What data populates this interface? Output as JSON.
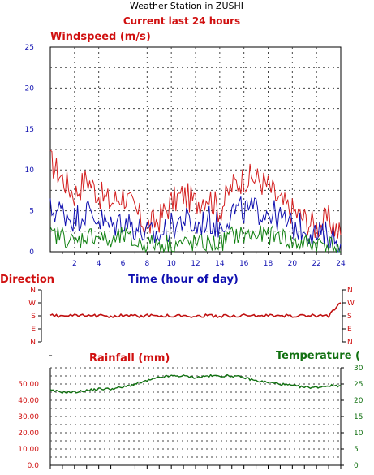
{
  "header": {
    "station": "Weather Station in ZUSHI",
    "period": "Current last 24 hours"
  },
  "colors": {
    "windspeed_max": "#d42020",
    "windspeed_avg": "#1010b0",
    "windspeed_min": "#108010",
    "direction": "#c01010",
    "temperature": "#107010",
    "grid": "#444444",
    "label_red": "#d01010",
    "label_blue": "#1010b0",
    "label_green": "#107010"
  },
  "chart_data": [
    {
      "type": "line",
      "title": "Windspeed (m/s)",
      "xlabel": "Time (hour of day)",
      "x_ticks": [
        "2",
        "4",
        "6",
        "8",
        "10",
        "12",
        "14",
        "16",
        "18",
        "20",
        "22",
        "24"
      ],
      "y_ticks": [
        "0",
        "5",
        "10",
        "15",
        "20",
        "25"
      ],
      "ylim": [
        0,
        25
      ],
      "xlim": [
        0,
        24
      ],
      "grid": true,
      "series": [
        {
          "color": "#d42020",
          "x": [
            0,
            1,
            2,
            3,
            4,
            5,
            6,
            7,
            8,
            9,
            10,
            11,
            12,
            13,
            14,
            15,
            16,
            17,
            18,
            19,
            20,
            21,
            22,
            23,
            24
          ],
          "values": [
            11,
            9,
            7,
            9,
            7,
            6,
            7,
            5,
            3,
            4,
            6,
            7,
            6,
            7,
            5,
            8,
            9,
            9,
            8,
            6,
            5,
            4,
            3,
            4,
            2
          ]
        },
        {
          "color": "#1010b0",
          "x": [
            0,
            1,
            2,
            3,
            4,
            5,
            6,
            7,
            8,
            9,
            10,
            11,
            12,
            13,
            14,
            15,
            16,
            17,
            18,
            19,
            20,
            21,
            22,
            23,
            24
          ],
          "values": [
            5,
            5,
            4,
            5,
            4,
            3,
            4,
            3,
            2,
            2,
            3,
            4,
            3,
            4,
            3,
            5,
            5,
            5,
            5,
            4,
            3,
            3,
            2,
            2,
            1
          ]
        },
        {
          "color": "#108010",
          "x": [
            0,
            1,
            2,
            3,
            4,
            5,
            6,
            7,
            8,
            9,
            10,
            11,
            12,
            13,
            14,
            15,
            16,
            17,
            18,
            19,
            20,
            21,
            22,
            23,
            24
          ],
          "values": [
            2,
            2,
            1,
            2,
            2,
            1,
            2,
            1,
            1,
            1,
            1,
            1,
            1,
            1,
            1,
            2,
            2,
            2,
            2,
            2,
            1,
            1,
            1,
            1,
            0
          ]
        }
      ]
    },
    {
      "type": "line",
      "title": "Direction",
      "y_ticks": [
        "N",
        "W",
        "S",
        "E",
        "N"
      ],
      "xlim": [
        0,
        24
      ],
      "series": [
        {
          "color": "#c01010",
          "x": [
            0,
            1,
            2,
            3,
            4,
            5,
            6,
            7,
            8,
            9,
            10,
            11,
            12,
            13,
            14,
            15,
            16,
            17,
            18,
            19,
            20,
            21,
            22,
            23,
            24
          ],
          "values": [
            "S",
            "S",
            "S",
            "S",
            "S",
            "S",
            "S",
            "S",
            "S",
            "S",
            "S",
            "S",
            "S",
            "S",
            "S",
            "S",
            "S",
            "S",
            "S",
            "S",
            "S",
            "S",
            "S",
            "S",
            "W"
          ]
        }
      ]
    },
    {
      "type": "line",
      "title": "Rainfall (mm)",
      "y2label": "Temperature (",
      "y_ticks_left": [
        "0.0",
        "10.00",
        "20.00",
        "30.00",
        "40.00",
        "50.00"
      ],
      "y_ticks_right": [
        "0",
        "5",
        "10",
        "15",
        "20",
        "25",
        "30"
      ],
      "ylim_left": [
        0,
        60
      ],
      "ylim_right": [
        0,
        30
      ],
      "xlim": [
        0,
        24
      ],
      "grid": true,
      "series": [
        {
          "color": "#107010",
          "axis": "right",
          "x": [
            0,
            1,
            2,
            3,
            4,
            5,
            6,
            7,
            8,
            9,
            10,
            11,
            12,
            13,
            14,
            15,
            16,
            17,
            18,
            19,
            20,
            21,
            22,
            23,
            24
          ],
          "values": [
            23,
            22.5,
            22.5,
            23,
            23.5,
            23.5,
            24,
            25,
            26,
            27,
            27.5,
            27.5,
            27,
            27.5,
            27.5,
            27.5,
            27,
            26,
            25.5,
            25,
            24.5,
            24,
            24,
            24.5,
            24.5
          ]
        }
      ]
    }
  ]
}
